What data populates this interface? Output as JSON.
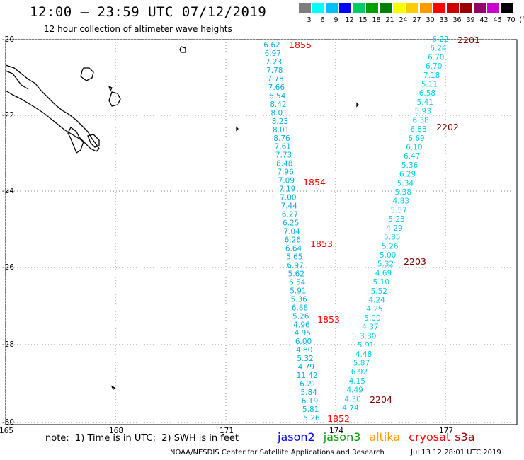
{
  "title": "12:00 – 23:59 UTC 07/12/2019",
  "subtitle": "12 hour collection of altimeter wave heights",
  "scale": {
    "labels": [
      "3",
      "6",
      "9",
      "12",
      "15",
      "18",
      "21",
      "24",
      "27",
      "30",
      "33",
      "36",
      "39",
      "42",
      "45",
      "70",
      "(ft)"
    ],
    "colors": [
      "#7f7f7f",
      "#00ffff",
      "#00bfff",
      "#0000ff",
      "#00cc66",
      "#00a000",
      "#008000",
      "#ffff00",
      "#ffcc00",
      "#ff9900",
      "#ff0000",
      "#cc0000",
      "#990000",
      "#990066",
      "#cc00cc",
      "#000000"
    ]
  },
  "axes": {
    "lat_labels": [
      "-20",
      "-22",
      "-24",
      "-26",
      "-28",
      "-30"
    ],
    "lon_labels": [
      "165",
      "168",
      "171",
      "174",
      "177"
    ]
  },
  "track_left": {
    "color": "#00b0e0",
    "values": [
      "6.62",
      "6.97",
      "7.23",
      "7.78",
      "7.78",
      "7.66",
      "6.54",
      "8.42",
      "8.01",
      "8.23",
      "8.01",
      "8.76",
      "7.61",
      "7.73",
      "8.48",
      "7.96",
      "7.09",
      "7.19",
      "7.00",
      "7.44",
      "6.27",
      "6.25",
      "7.04",
      "6.26",
      "6.64",
      "5.65",
      "6.97",
      "5.62",
      "6.54",
      "5.91",
      "5.36",
      "6.88",
      "5.26",
      "4.96",
      "4.95",
      "6.00",
      "4.80",
      "5.32",
      "4.79",
      "11.42",
      "6.21",
      "5.84",
      "6.19",
      "5.81",
      "5.26"
    ]
  },
  "track_right": {
    "color": "#00d0e8",
    "values": [
      "6.22",
      "6.24",
      "6.70",
      "6.70",
      "7.18",
      "5.11",
      "6.58",
      "5.41",
      "5.93",
      "6.38",
      "6.88",
      "6.69",
      "6.10",
      "6.47",
      "5.36",
      "6.29",
      "5.34",
      "5.38",
      "4.83",
      "5.57",
      "5.23",
      "4.29",
      "5.85",
      "5.26",
      "5.00",
      "5.32",
      "4.69",
      "5.10",
      "5.52",
      "4.24",
      "4.25",
      "5.00",
      "4.37",
      "3.30",
      "5.91",
      "4.48",
      "5.87",
      "6.92",
      "4.15",
      "4.49",
      "4.30",
      "4.74"
    ]
  },
  "time_labels_left": {
    "color": "#ff0000",
    "labels": [
      "1855",
      "1854",
      "1853",
      "1853",
      "1852"
    ]
  },
  "time_labels_right": {
    "color": "#800000",
    "labels": [
      "2201",
      "2202",
      "2203",
      "2204"
    ]
  },
  "note": "note:  1) Time is in UTC;  2) SWH is in feet",
  "satellites": [
    {
      "name": "jason2",
      "color": "#0000ff"
    },
    {
      "name": "jason3",
      "color": "#00a000"
    },
    {
      "name": "altika",
      "color": "#ff9900"
    },
    {
      "name": "cryosat",
      "color": "#ff0000"
    },
    {
      "name": "s3a",
      "color": "#990000"
    }
  ],
  "credit": "NOAA/NESDIS Center for Satellite Applications and Research",
  "timestamp": "Jul 13 12:28:01 UTC 2019"
}
